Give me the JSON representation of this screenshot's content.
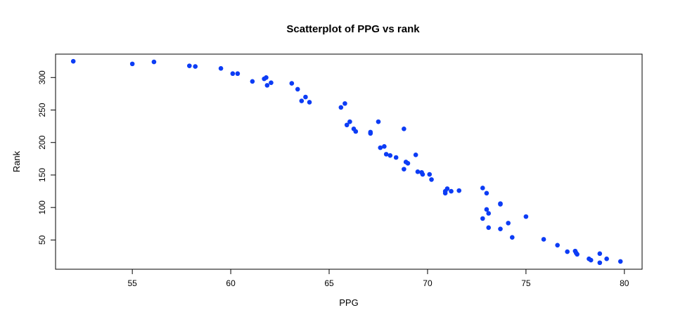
{
  "chart_data": {
    "type": "scatter",
    "title": "Scatterplot of PPG vs rank",
    "xlabel": "PPG",
    "ylabel": "Rank",
    "xlim": [
      51.1,
      80.9
    ],
    "ylim": [
      5,
      336
    ],
    "xticks": [
      55,
      60,
      65,
      70,
      75,
      80
    ],
    "yticks": [
      50,
      100,
      150,
      200,
      250,
      300
    ],
    "grid": false,
    "legend": "none",
    "point_color": "#0c3cf5",
    "points": [
      {
        "x": 52.0,
        "y": 325
      },
      {
        "x": 55.0,
        "y": 321
      },
      {
        "x": 56.1,
        "y": 324
      },
      {
        "x": 57.9,
        "y": 318
      },
      {
        "x": 58.2,
        "y": 317
      },
      {
        "x": 59.5,
        "y": 314
      },
      {
        "x": 60.1,
        "y": 306
      },
      {
        "x": 60.35,
        "y": 306
      },
      {
        "x": 61.1,
        "y": 294
      },
      {
        "x": 61.7,
        "y": 298
      },
      {
        "x": 61.8,
        "y": 300
      },
      {
        "x": 61.85,
        "y": 288
      },
      {
        "x": 62.05,
        "y": 292
      },
      {
        "x": 63.1,
        "y": 291
      },
      {
        "x": 63.4,
        "y": 282
      },
      {
        "x": 63.6,
        "y": 264
      },
      {
        "x": 63.8,
        "y": 270
      },
      {
        "x": 64.0,
        "y": 262
      },
      {
        "x": 65.6,
        "y": 254
      },
      {
        "x": 65.8,
        "y": 260
      },
      {
        "x": 65.9,
        "y": 227
      },
      {
        "x": 66.05,
        "y": 232
      },
      {
        "x": 66.25,
        "y": 221
      },
      {
        "x": 66.35,
        "y": 217
      },
      {
        "x": 67.1,
        "y": 216
      },
      {
        "x": 67.1,
        "y": 214
      },
      {
        "x": 67.5,
        "y": 232
      },
      {
        "x": 67.6,
        "y": 192
      },
      {
        "x": 67.8,
        "y": 194
      },
      {
        "x": 67.9,
        "y": 182
      },
      {
        "x": 68.1,
        "y": 180
      },
      {
        "x": 68.4,
        "y": 177
      },
      {
        "x": 68.8,
        "y": 221
      },
      {
        "x": 68.8,
        "y": 159
      },
      {
        "x": 68.9,
        "y": 170
      },
      {
        "x": 69.0,
        "y": 168
      },
      {
        "x": 69.4,
        "y": 181
      },
      {
        "x": 69.5,
        "y": 155
      },
      {
        "x": 69.7,
        "y": 154
      },
      {
        "x": 69.75,
        "y": 151
      },
      {
        "x": 70.1,
        "y": 151
      },
      {
        "x": 70.2,
        "y": 143
      },
      {
        "x": 70.9,
        "y": 125
      },
      {
        "x": 70.9,
        "y": 122
      },
      {
        "x": 71.0,
        "y": 129
      },
      {
        "x": 71.2,
        "y": 125
      },
      {
        "x": 71.6,
        "y": 126
      },
      {
        "x": 72.8,
        "y": 130
      },
      {
        "x": 72.8,
        "y": 83
      },
      {
        "x": 73.0,
        "y": 122
      },
      {
        "x": 73.0,
        "y": 97
      },
      {
        "x": 73.1,
        "y": 91
      },
      {
        "x": 73.1,
        "y": 69
      },
      {
        "x": 73.7,
        "y": 106
      },
      {
        "x": 73.7,
        "y": 105
      },
      {
        "x": 73.7,
        "y": 67
      },
      {
        "x": 74.1,
        "y": 76
      },
      {
        "x": 74.3,
        "y": 54
      },
      {
        "x": 75.0,
        "y": 86
      },
      {
        "x": 75.9,
        "y": 51
      },
      {
        "x": 76.6,
        "y": 42
      },
      {
        "x": 77.1,
        "y": 32
      },
      {
        "x": 77.5,
        "y": 33
      },
      {
        "x": 77.55,
        "y": 30
      },
      {
        "x": 77.6,
        "y": 28
      },
      {
        "x": 78.2,
        "y": 21
      },
      {
        "x": 78.3,
        "y": 19
      },
      {
        "x": 78.75,
        "y": 29
      },
      {
        "x": 78.75,
        "y": 15
      },
      {
        "x": 79.1,
        "y": 21
      },
      {
        "x": 79.8,
        "y": 17
      }
    ]
  }
}
